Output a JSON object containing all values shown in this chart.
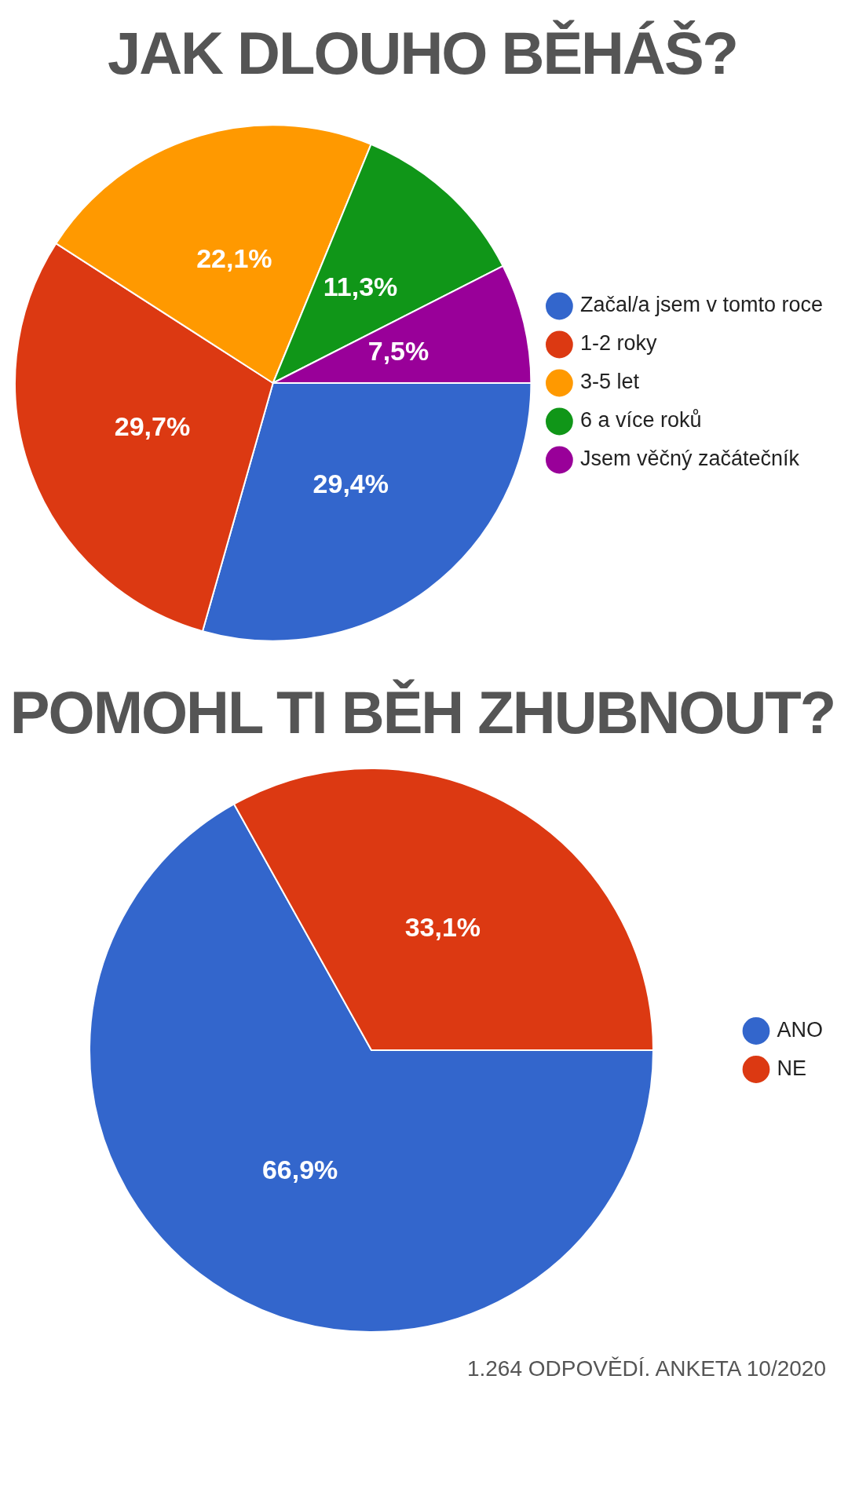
{
  "chart_data": [
    {
      "type": "pie",
      "title": "JAK DLOUHO BĚHÁŠ?",
      "categories": [
        "Začal/a jsem v tomto roce",
        "1-2 roky",
        "3-5 let",
        "6 a více roků",
        "Jsem věčný začátečník"
      ],
      "values": [
        29.4,
        29.7,
        22.1,
        11.3,
        7.5
      ],
      "value_labels": [
        "29,4%",
        "29,7%",
        "22,1%",
        "11,3%",
        "7,5%"
      ],
      "colors": [
        "#3366cc",
        "#dc3912",
        "#ff9900",
        "#109618",
        "#990099"
      ],
      "legend": "right"
    },
    {
      "type": "pie",
      "title": "POMOHL TI BĚH ZHUBNOUT?",
      "categories": [
        "ANO",
        "NE"
      ],
      "values": [
        66.9,
        33.1
      ],
      "value_labels": [
        "66,9%",
        "33,1%"
      ],
      "colors": [
        "#3366cc",
        "#dc3912"
      ],
      "legend": "right",
      "annotations": [
        "1.264 ODPOVĚDÍ. ANKETA 10/2020"
      ]
    }
  ]
}
